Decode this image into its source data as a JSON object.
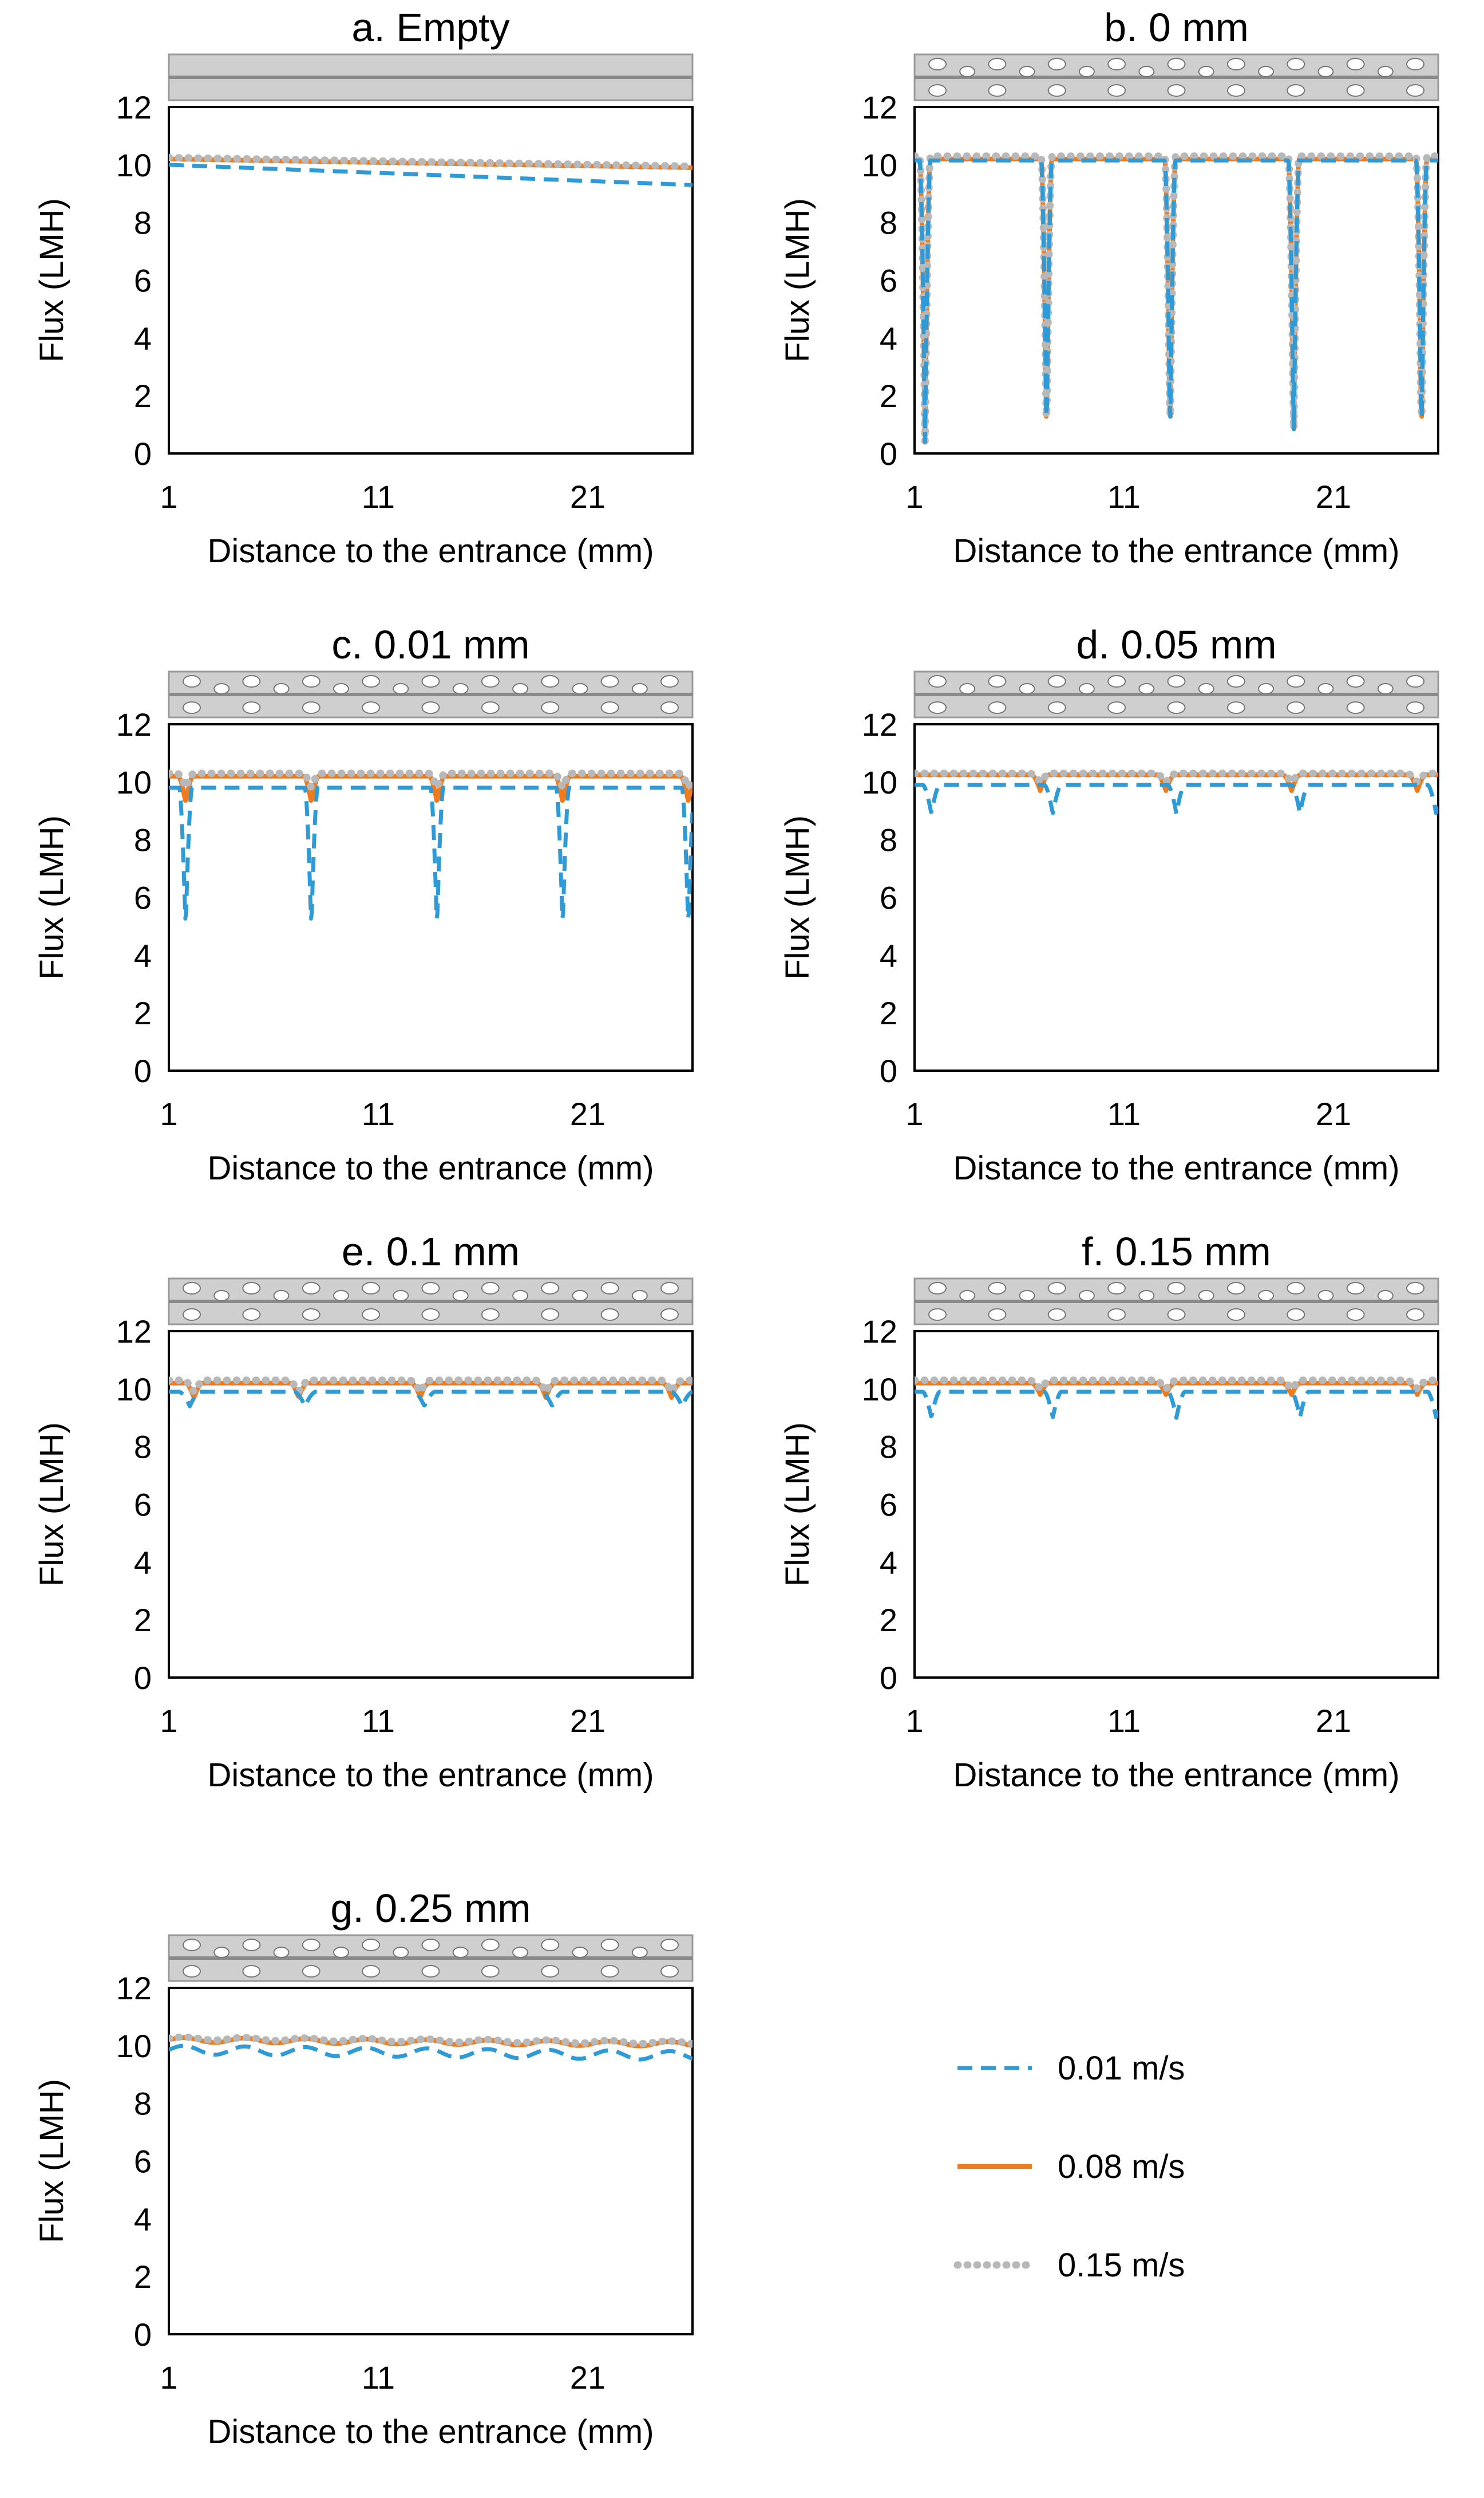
{
  "legend": [
    {
      "label": "0.01 m/s",
      "color": "#2e9bd6",
      "style": "dashed"
    },
    {
      "label": "0.08 m/s",
      "color": "#f07b1d",
      "style": "solid"
    },
    {
      "label": "0.15 m/s",
      "color": "#b8b8b8",
      "style": "dotted"
    }
  ],
  "colors": {
    "spacer_fill": "#cfcfcf",
    "spacer_line": "#8a8a8a",
    "frame": "#000000"
  },
  "chart_data": [
    {
      "id": "a",
      "type": "line",
      "title": "a. Empty",
      "spacer": "empty",
      "xlabel": "Distance to the entrance (mm)",
      "ylabel": "Flux (LMH)",
      "xlim": [
        1,
        26
      ],
      "ylim": [
        0,
        12
      ],
      "xticks": [
        "1",
        "11",
        "21"
      ],
      "yticks": [
        "0",
        "2",
        "4",
        "6",
        "8",
        "10",
        "12"
      ],
      "series": [
        {
          "name": "0.01 m/s",
          "x": [
            1,
            26
          ],
          "y": [
            10.0,
            9.3
          ]
        },
        {
          "name": "0.08 m/s",
          "x": [
            1,
            26
          ],
          "y": [
            10.2,
            9.9
          ]
        },
        {
          "name": "0.15 m/s",
          "x": [
            1,
            26
          ],
          "y": [
            10.25,
            9.95
          ]
        }
      ]
    },
    {
      "id": "b",
      "type": "line",
      "title": "b. 0 mm",
      "spacer": "filaments",
      "xlabel": "Distance to the entrance (mm)",
      "ylabel": "Flux (LMH)",
      "xlim": [
        1,
        26
      ],
      "ylim": [
        0,
        12
      ],
      "xticks": [
        "1",
        "11",
        "21"
      ],
      "yticks": [
        "0",
        "2",
        "4",
        "6",
        "8",
        "10",
        "12"
      ],
      "series": [
        {
          "name": "0.01 m/s",
          "base": 10.15,
          "dips": [
            1.5,
            7.3,
            13.2,
            19.1,
            25.2
          ],
          "dip_min": 0.4,
          "dip_width": 0.25
        },
        {
          "name": "0.08 m/s",
          "base": 10.2,
          "dips": [
            1.5,
            7.3,
            13.2,
            19.1,
            25.2
          ],
          "dip_min": 0.4,
          "dip_width": 0.25
        },
        {
          "name": "0.15 m/s",
          "base": 10.3,
          "dips": [
            1.5,
            7.3,
            13.2,
            19.1,
            25.2
          ],
          "dip_min": 0.4,
          "dip_width": 0.25
        }
      ]
    },
    {
      "id": "c",
      "type": "line",
      "title": "c. 0.01 mm",
      "spacer": "filaments",
      "xlabel": "Distance to the entrance (mm)",
      "ylabel": "Flux (LMH)",
      "xlim": [
        1,
        26
      ],
      "ylim": [
        0,
        12
      ],
      "xticks": [
        "1",
        "11",
        "21"
      ],
      "yticks": [
        "0",
        "2",
        "4",
        "6",
        "8",
        "10",
        "12"
      ],
      "series": [
        {
          "name": "0.01 m/s",
          "base": 9.8,
          "dips": [
            1.8,
            7.8,
            13.8,
            19.8,
            25.8
          ],
          "dip_min": 4.9,
          "dip_width": 0.3
        },
        {
          "name": "0.08 m/s",
          "base": 10.2,
          "dips": [
            1.8,
            7.8,
            13.8,
            19.8,
            25.8
          ],
          "dip_min": 9.3,
          "dip_width": 0.35
        },
        {
          "name": "0.15 m/s",
          "base": 10.3,
          "dips": [
            1.8,
            7.8,
            13.8,
            19.8,
            25.8
          ],
          "dip_min": 9.8,
          "dip_width": 0.4
        }
      ]
    },
    {
      "id": "d",
      "type": "line",
      "title": "d. 0.05 mm",
      "spacer": "filaments",
      "xlabel": "Distance to the entrance (mm)",
      "ylabel": "Flux (LMH)",
      "xlim": [
        1,
        26
      ],
      "ylim": [
        0,
        12
      ],
      "xticks": [
        "1",
        "11",
        "21"
      ],
      "yticks": [
        "0",
        "2",
        "4",
        "6",
        "8",
        "10",
        "12"
      ],
      "series": [
        {
          "name": "0.01 m/s",
          "base": 9.9,
          "dips": [
            1.8,
            7.6,
            13.5,
            19.4,
            25.9
          ],
          "dip_min": 8.9,
          "dip_width": 0.4
        },
        {
          "name": "0.08 m/s",
          "base": 10.25,
          "dips": [
            7.0,
            13.0,
            19.0,
            25.0
          ],
          "dip_min": 9.7,
          "dip_width": 0.4
        },
        {
          "name": "0.15 m/s",
          "base": 10.3,
          "dips": [
            7.0,
            13.0,
            19.0,
            25.0
          ],
          "dip_min": 10.0,
          "dip_width": 0.5
        }
      ]
    },
    {
      "id": "e",
      "type": "line",
      "title": "e. 0.1 mm",
      "spacer": "filaments",
      "xlabel": "Distance to the entrance (mm)",
      "ylabel": "Flux (LMH)",
      "xlim": [
        1,
        26
      ],
      "ylim": [
        0,
        12
      ],
      "xticks": [
        "1",
        "11",
        "21"
      ],
      "yticks": [
        "0",
        "2",
        "4",
        "6",
        "8",
        "10",
        "12"
      ],
      "series": [
        {
          "name": "0.01 m/s",
          "base": 9.9,
          "dips": [
            2.0,
            7.5,
            13.2,
            19.3,
            25.5
          ],
          "dip_min": 9.4,
          "dip_width": 0.5
        },
        {
          "name": "0.08 m/s",
          "base": 10.2,
          "dips": [
            2.2,
            7.2,
            13.0,
            19.0,
            25.0
          ],
          "dip_min": 9.7,
          "dip_width": 0.4
        },
        {
          "name": "0.15 m/s",
          "base": 10.3,
          "dips": [
            2.2,
            7.2,
            13.0,
            19.0,
            25.0
          ],
          "dip_min": 9.9,
          "dip_width": 0.5
        }
      ]
    },
    {
      "id": "f",
      "type": "line",
      "title": "f. 0.15 mm",
      "spacer": "filaments",
      "xlabel": "Distance to the entrance (mm)",
      "ylabel": "Flux (LMH)",
      "xlim": [
        1,
        26
      ],
      "ylim": [
        0,
        12
      ],
      "xticks": [
        "1",
        "11",
        "21"
      ],
      "yticks": [
        "0",
        "2",
        "4",
        "6",
        "8",
        "10",
        "12"
      ],
      "series": [
        {
          "name": "0.01 m/s",
          "base": 9.9,
          "dips": [
            1.8,
            7.6,
            13.5,
            19.4,
            25.9
          ],
          "dip_min": 9.0,
          "dip_width": 0.4
        },
        {
          "name": "0.08 m/s",
          "base": 10.2,
          "dips": [
            7.0,
            13.0,
            19.0,
            25.0
          ],
          "dip_min": 9.8,
          "dip_width": 0.4
        },
        {
          "name": "0.15 m/s",
          "base": 10.3,
          "dips": [
            7.0,
            13.0,
            19.0,
            25.0
          ],
          "dip_min": 10.0,
          "dip_width": 0.5
        }
      ]
    },
    {
      "id": "g",
      "type": "line",
      "title": "g. 0.25 mm",
      "spacer": "filaments",
      "xlabel": "Distance to the entrance (mm)",
      "ylabel": "Flux (LMH)",
      "xlim": [
        1,
        26
      ],
      "ylim": [
        0,
        12
      ],
      "xticks": [
        "1",
        "11",
        "21"
      ],
      "yticks": [
        "0",
        "2",
        "4",
        "6",
        "8",
        "10",
        "12"
      ],
      "series": [
        {
          "name": "0.01 m/s",
          "wave": true,
          "base": 9.85,
          "amp": 0.15,
          "period": 2.9,
          "trend": -0.2
        },
        {
          "name": "0.08 m/s",
          "wave": true,
          "base": 10.2,
          "amp": 0.08,
          "period": 2.9,
          "trend": -0.15
        },
        {
          "name": "0.15 m/s",
          "wave": true,
          "base": 10.25,
          "amp": 0.05,
          "period": 2.9,
          "trend": -0.15
        }
      ]
    }
  ]
}
